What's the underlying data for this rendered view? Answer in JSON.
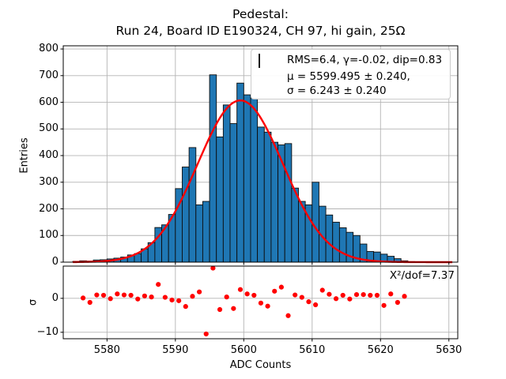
{
  "title": {
    "line1": "Pedestal:",
    "line2": "Run 24, Board ID E190324, CH 97, hi gain, 25Ω"
  },
  "legend": {
    "hist_label": "RMS=6.4, γ=-0.02, dip=0.83",
    "fit_label_line1": "μ = 5599.495 ± 0.240,",
    "fit_label_line2": "σ = 6.243 ± 0.240"
  },
  "annotation": "X²/dof=7.37",
  "axes": {
    "main_ylabel": "Entries",
    "sigma_ylabel": "σ",
    "xlabel": "ADC Counts",
    "x_ticks": [
      "5580",
      "5590",
      "5600",
      "5610",
      "5620",
      "5630"
    ],
    "x_tick_values": [
      5580,
      5590,
      5600,
      5610,
      5620,
      5630
    ],
    "main_y_ticks": [
      "0",
      "100",
      "200",
      "300",
      "400",
      "500",
      "600",
      "700",
      "800"
    ],
    "main_y_tick_values": [
      0,
      100,
      200,
      300,
      400,
      500,
      600,
      700,
      800
    ],
    "sigma_y_ticks": [
      "0",
      "−10"
    ],
    "sigma_y_tick_values": [
      0,
      -10
    ],
    "xlim": [
      5573.6,
      5631.3
    ],
    "main_ylim": [
      0,
      812
    ],
    "sigma_ylim": [
      -11.9,
      9.5
    ],
    "grid": true
  },
  "colors": {
    "bar_fill": "#1f77b4",
    "bar_edge": "#0d0d0d",
    "fit_line": "#ff0000",
    "residual_dot": "#ff0000",
    "grid": "#b4b4b4",
    "spine": "#000000"
  },
  "chart_data": [
    {
      "type": "bar",
      "subtype": "histogram",
      "title": "Pedestal: Run 24, Board ID E190324, CH 97, hi gain, 25Ω",
      "ylabel": "Entries",
      "bin_start": 5575,
      "bin_width": 1,
      "counts": [
        3,
        5,
        4,
        8,
        9,
        12,
        15,
        19,
        27,
        32,
        50,
        73,
        130,
        140,
        179,
        276,
        357,
        430,
        215,
        228,
        703,
        470,
        590,
        520,
        672,
        628,
        615,
        507,
        488,
        450,
        440,
        445,
        278,
        228,
        215,
        300,
        210,
        177,
        150,
        129,
        112,
        100,
        68,
        40,
        38,
        30,
        22,
        13,
        5,
        2
      ],
      "legend_entry": "RMS=6.4, γ=-0.02, dip=0.83",
      "legend_position": "upper right",
      "ylim": [
        0,
        812
      ],
      "fit": {
        "shape": "gaussian",
        "legend_entry": "μ = 5599.495 ± 0.240, σ = 6.243 ± 0.240",
        "amplitude": 607,
        "mu": 5599.495,
        "mu_err": 0.24,
        "sigma": 6.243,
        "sigma_err": 0.24,
        "x_range": [
          5575,
          5630.6
        ]
      }
    },
    {
      "type": "scatter",
      "name": "fit-residuals",
      "ylabel": "σ",
      "xlabel": "ADC Counts",
      "annotation": "X²/dof=7.37",
      "x": [
        5576.5,
        5577.5,
        5578.5,
        5579.5,
        5580.5,
        5581.5,
        5582.5,
        5583.5,
        5584.5,
        5585.5,
        5586.5,
        5587.5,
        5588.5,
        5589.5,
        5590.5,
        5591.5,
        5592.5,
        5593.5,
        5594.5,
        5595.5,
        5596.5,
        5597.5,
        5598.5,
        5599.5,
        5600.5,
        5601.5,
        5602.5,
        5603.5,
        5604.5,
        5605.5,
        5606.5,
        5607.5,
        5608.5,
        5609.5,
        5610.5,
        5611.5,
        5612.5,
        5613.5,
        5614.5,
        5615.5,
        5616.5,
        5617.5,
        5618.5,
        5619.5,
        5620.5,
        5621.5,
        5622.5,
        5623.5
      ],
      "y": [
        0.1,
        -1.2,
        1.0,
        0.9,
        -0.1,
        1.3,
        1.0,
        0.9,
        -0.2,
        0.7,
        0.4,
        4.1,
        0.3,
        -0.5,
        -0.7,
        -2.4,
        0.6,
        1.9,
        -10.5,
        8.9,
        -3.3,
        0.4,
        -3.0,
        2.6,
        1.3,
        0.9,
        -1.4,
        -2.3,
        2.1,
        3.3,
        -5.1,
        1.0,
        0.3,
        -1.0,
        -1.9,
        2.4,
        1.2,
        -0.1,
        0.9,
        -0.2,
        1.1,
        1.1,
        0.9,
        0.9,
        -2.1,
        1.3,
        -1.2,
        0.6
      ]
    }
  ]
}
